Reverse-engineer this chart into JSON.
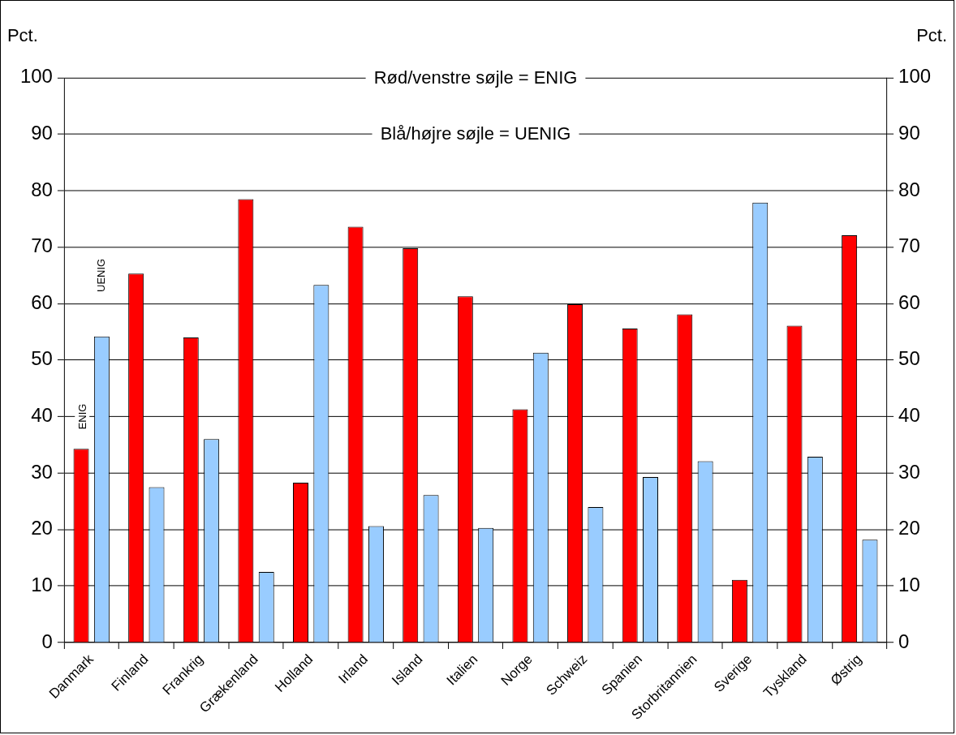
{
  "chart_data": {
    "type": "bar",
    "categories": [
      "Danmark",
      "Finland",
      "Frankrig",
      "Grækenland",
      "Holland",
      "Irland",
      "Island",
      "Italien",
      "Norge",
      "Schweiz",
      "Spanien",
      "Storbritannien",
      "Sverige",
      "Tyskland",
      "Østrig"
    ],
    "series": [
      {
        "color": "#ff0000",
        "values": [
          34.3,
          65.3,
          54,
          78.5,
          28.3,
          73.6,
          69.8,
          61.3,
          41.3,
          59.9,
          55.6,
          58.1,
          11.1,
          56.1,
          72.1
        ]
      },
      {
        "color": "#99ccff",
        "values": [
          54.2,
          27.5,
          36,
          12.5,
          63.3,
          20.6,
          26.1,
          20.3,
          51.3,
          24,
          29.3,
          32.1,
          77.9,
          32.9,
          18.2
        ]
      }
    ],
    "ylabel": "Pct.",
    "y2label": "Pct.",
    "ylim": [
      0,
      100
    ],
    "yticks": [
      0,
      10,
      20,
      30,
      40,
      50,
      60,
      70,
      80,
      90,
      100
    ],
    "y2lim": [
      0,
      100
    ],
    "y2ticks": [
      0,
      10,
      20,
      30,
      40,
      50,
      60,
      70,
      80,
      90,
      100
    ],
    "annotations": [
      "Rød/venstre søjle = ENIG",
      "Blå/højre søjle = UENIG",
      "ENIG",
      "UENIG"
    ],
    "grid": "y",
    "legend": false
  }
}
